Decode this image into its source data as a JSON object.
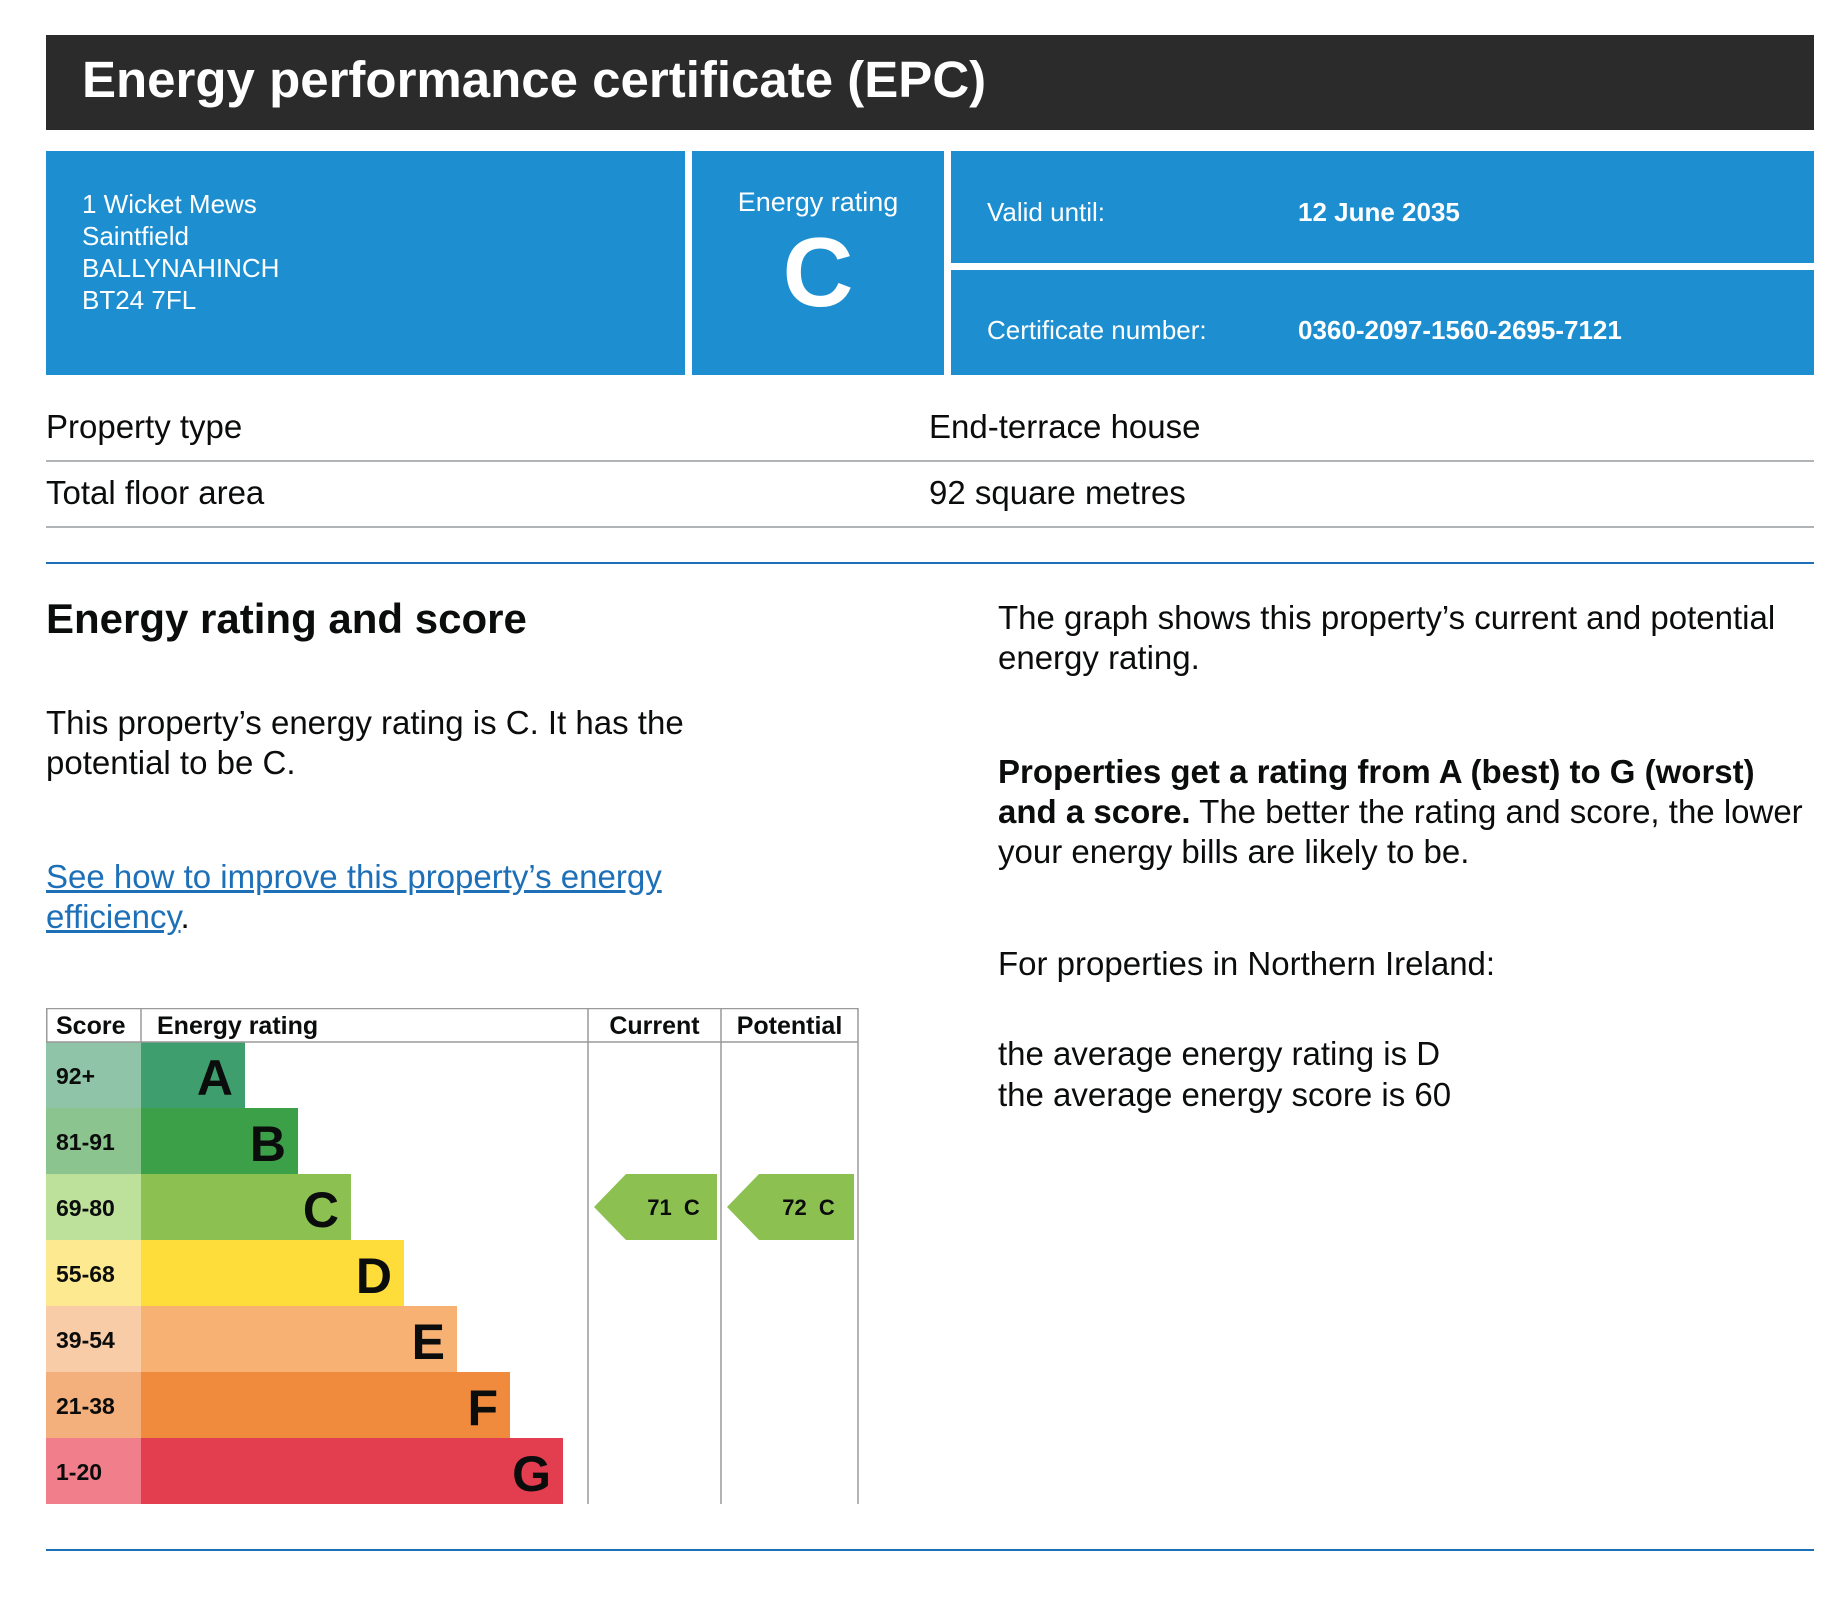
{
  "title": "Energy performance certificate (EPC)",
  "address": {
    "line1": "1 Wicket Mews",
    "line2": "Saintfield",
    "line3": "BALLYNAHINCH",
    "postcode": "BT24 7FL"
  },
  "rating_box": {
    "caption": "Energy rating",
    "letter": "C"
  },
  "valid_until": {
    "label": "Valid until:",
    "value": "12 June 2035"
  },
  "certificate": {
    "label": "Certificate number:",
    "value": "0360-2097-1560-2695-7121"
  },
  "property": {
    "type_label": "Property type",
    "type_value": "End-terrace house",
    "area_label": "Total floor area",
    "area_value": "92 square metres"
  },
  "section": {
    "heading": "Energy rating and score",
    "rating_sentence": "This property’s energy rating is C. It has the potential to be C.",
    "improve_link": "See how to improve this property’s energy efficiency",
    "improve_link_suffix": "."
  },
  "right": {
    "graph_desc": "The graph shows this property’s current and potential energy rating.",
    "scale_bold": "Properties get a rating from A (best) to G (worst) and a score.",
    "scale_rest": " The better the rating and score, the lower your energy bills are likely to be.",
    "ni_heading": "For properties in Northern Ireland:",
    "ni_avg_rating": "the average energy rating is D",
    "ni_avg_score": "the average energy score is 60"
  },
  "colors": {
    "header_blue": "#1d8fd1",
    "title_bar": "#2b2b2b",
    "link_blue": "#1d70b8"
  },
  "chart_data": {
    "type": "bar",
    "headers": {
      "score": "Score",
      "rating": "Energy rating",
      "current": "Current",
      "potential": "Potential"
    },
    "bands": [
      {
        "score": "92+",
        "letter": "A",
        "color": "#3e9e6e",
        "score_bg": "#8fc4a8"
      },
      {
        "score": "81-91",
        "letter": "B",
        "color": "#3ca048",
        "score_bg": "#8bc48f"
      },
      {
        "score": "69-80",
        "letter": "C",
        "color": "#8cc152",
        "score_bg": "#bde09a"
      },
      {
        "score": "55-68",
        "letter": "D",
        "color": "#fedd3a",
        "score_bg": "#fde98f"
      },
      {
        "score": "39-54",
        "letter": "E",
        "color": "#f6b173",
        "score_bg": "#f8cca7"
      },
      {
        "score": "21-38",
        "letter": "F",
        "color": "#f08a3c",
        "score_bg": "#f4b07c"
      },
      {
        "score": "1-20",
        "letter": "G",
        "color": "#e33d50",
        "score_bg": "#f07f8b"
      }
    ],
    "current": {
      "score": 71,
      "letter": "C",
      "label": "71  C",
      "color": "#8cc152"
    },
    "potential": {
      "score": 72,
      "letter": "C",
      "label": "72  C",
      "color": "#8cc152"
    }
  }
}
